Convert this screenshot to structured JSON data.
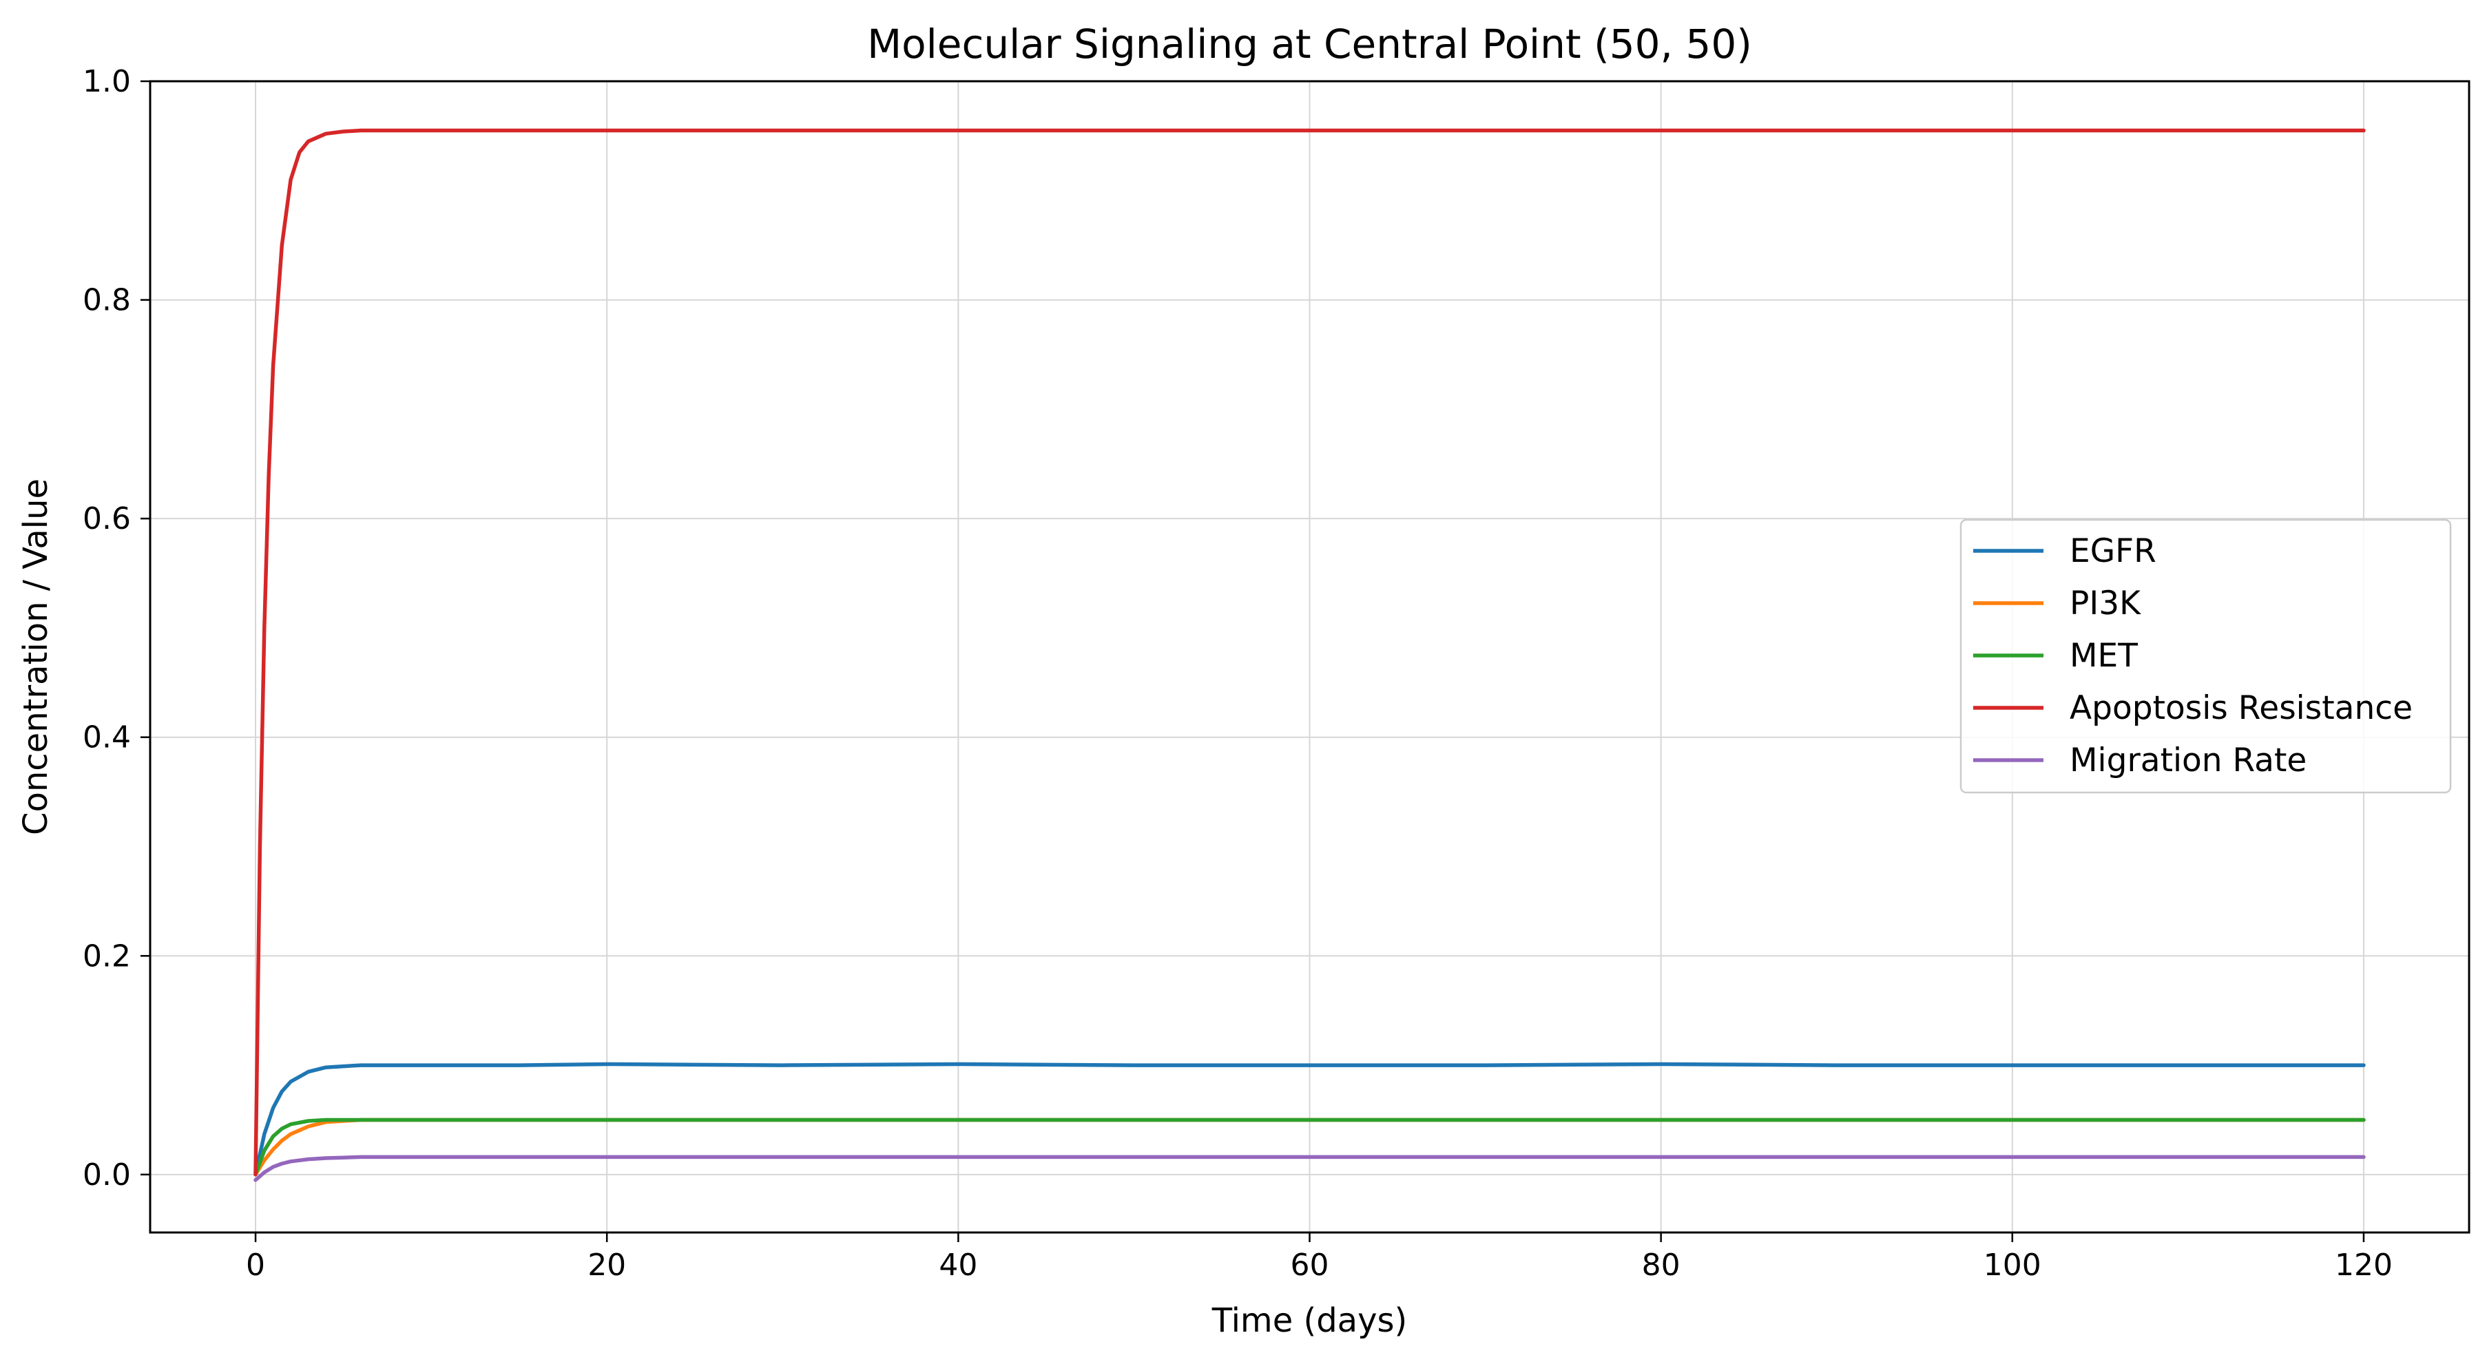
{
  "chart_data": {
    "type": "line",
    "title": "Molecular Signaling at Central Point (50, 50)",
    "xlabel": "Time (days)",
    "ylabel": "Concentration / Value",
    "xlim": [
      -6,
      126
    ],
    "ylim": [
      -0.053,
      1.0
    ],
    "xticks": [
      0,
      20,
      40,
      60,
      80,
      100,
      120
    ],
    "yticks": [
      0.0,
      0.2,
      0.4,
      0.6,
      0.8,
      1.0
    ],
    "xtick_labels": [
      "0",
      "20",
      "40",
      "60",
      "80",
      "100",
      "120"
    ],
    "ytick_labels": [
      "0.0",
      "0.2",
      "0.4",
      "0.6",
      "0.8",
      "1.0"
    ],
    "grid": true,
    "legend_position": "center-right",
    "series": [
      {
        "name": "EGFR",
        "color": "#1f77b4",
        "x": [
          0,
          0.5,
          1,
          1.5,
          2,
          3,
          4,
          5,
          6,
          8,
          10,
          15,
          20,
          30,
          40,
          50,
          60,
          70,
          80,
          90,
          100,
          110,
          120
        ],
        "y": [
          0.0,
          0.037,
          0.061,
          0.076,
          0.085,
          0.094,
          0.098,
          0.099,
          0.1,
          0.1,
          0.1,
          0.1,
          0.101,
          0.1,
          0.101,
          0.1,
          0.1,
          0.1,
          0.101,
          0.1,
          0.1,
          0.1,
          0.1
        ]
      },
      {
        "name": "PI3K",
        "color": "#ff7f0e",
        "x": [
          0,
          0.5,
          1,
          1.5,
          2,
          3,
          4,
          5,
          6,
          8,
          10,
          20,
          40,
          60,
          80,
          100,
          120
        ],
        "y": [
          0.0,
          0.013,
          0.023,
          0.031,
          0.037,
          0.044,
          0.048,
          0.049,
          0.05,
          0.05,
          0.05,
          0.05,
          0.05,
          0.05,
          0.05,
          0.05,
          0.05
        ]
      },
      {
        "name": "MET",
        "color": "#2ca02c",
        "x": [
          0,
          0.5,
          1,
          1.5,
          2,
          3,
          4,
          5,
          6,
          8,
          10,
          20,
          40,
          60,
          80,
          100,
          120
        ],
        "y": [
          0.0,
          0.022,
          0.035,
          0.042,
          0.046,
          0.049,
          0.05,
          0.05,
          0.05,
          0.05,
          0.05,
          0.05,
          0.05,
          0.05,
          0.05,
          0.05,
          0.05
        ]
      },
      {
        "name": "Apoptosis Resistance",
        "color": "#d62728",
        "x": [
          0,
          0.25,
          0.5,
          0.75,
          1,
          1.5,
          2,
          2.5,
          3,
          4,
          5,
          6,
          8,
          10,
          20,
          40,
          60,
          80,
          100,
          120
        ],
        "y": [
          0.0,
          0.3,
          0.5,
          0.64,
          0.74,
          0.85,
          0.91,
          0.935,
          0.945,
          0.952,
          0.954,
          0.955,
          0.955,
          0.955,
          0.955,
          0.955,
          0.955,
          0.955,
          0.955,
          0.955
        ]
      },
      {
        "name": "Migration Rate",
        "color": "#9467bd",
        "x": [
          0,
          0.5,
          1,
          1.5,
          2,
          3,
          4,
          5,
          6,
          8,
          10,
          20,
          40,
          60,
          80,
          100,
          120
        ],
        "y": [
          -0.005,
          0.002,
          0.007,
          0.01,
          0.012,
          0.014,
          0.015,
          0.0155,
          0.016,
          0.016,
          0.016,
          0.016,
          0.016,
          0.016,
          0.016,
          0.016,
          0.016
        ]
      }
    ]
  }
}
